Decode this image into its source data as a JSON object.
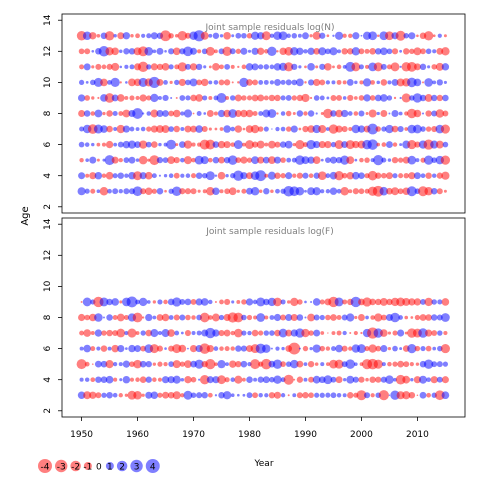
{
  "chart_data": {
    "type": "scatter",
    "subtype": "bubble residual plot",
    "ylabel": "Age",
    "xlabel": "Year",
    "panels": [
      {
        "title": "Joint sample residuals log(N)",
        "x_range": [
          1950,
          2015
        ],
        "ages": [
          3,
          4,
          5,
          6,
          7,
          8,
          9,
          10,
          11,
          12,
          13
        ],
        "xlim": [
          1946.5,
          2018.5
        ],
        "ylim": [
          1.6,
          14.4
        ],
        "y_ticks": [
          2,
          4,
          6,
          8,
          10,
          12,
          14
        ],
        "x_ticks": []
      },
      {
        "title": "Joint sample residuals log(F)",
        "x_range": [
          1950,
          2015
        ],
        "ages": [
          3,
          4,
          5,
          6,
          7,
          8,
          9
        ],
        "xlim": [
          1946.5,
          2018.5
        ],
        "ylim": [
          1.6,
          14.4
        ],
        "y_ticks": [
          2,
          4,
          6,
          8,
          10,
          12,
          14
        ],
        "x_ticks": [
          1950,
          1960,
          1970,
          1980,
          1990,
          2000,
          2010
        ]
      }
    ],
    "legend": {
      "placement": "bottom-left",
      "values": [
        -4,
        -3,
        -2,
        -1,
        0,
        1,
        2,
        3,
        4
      ]
    },
    "colors": {
      "positive": "#0000ff",
      "negative": "#ff0000",
      "fill_opacity": 0.5
    }
  }
}
